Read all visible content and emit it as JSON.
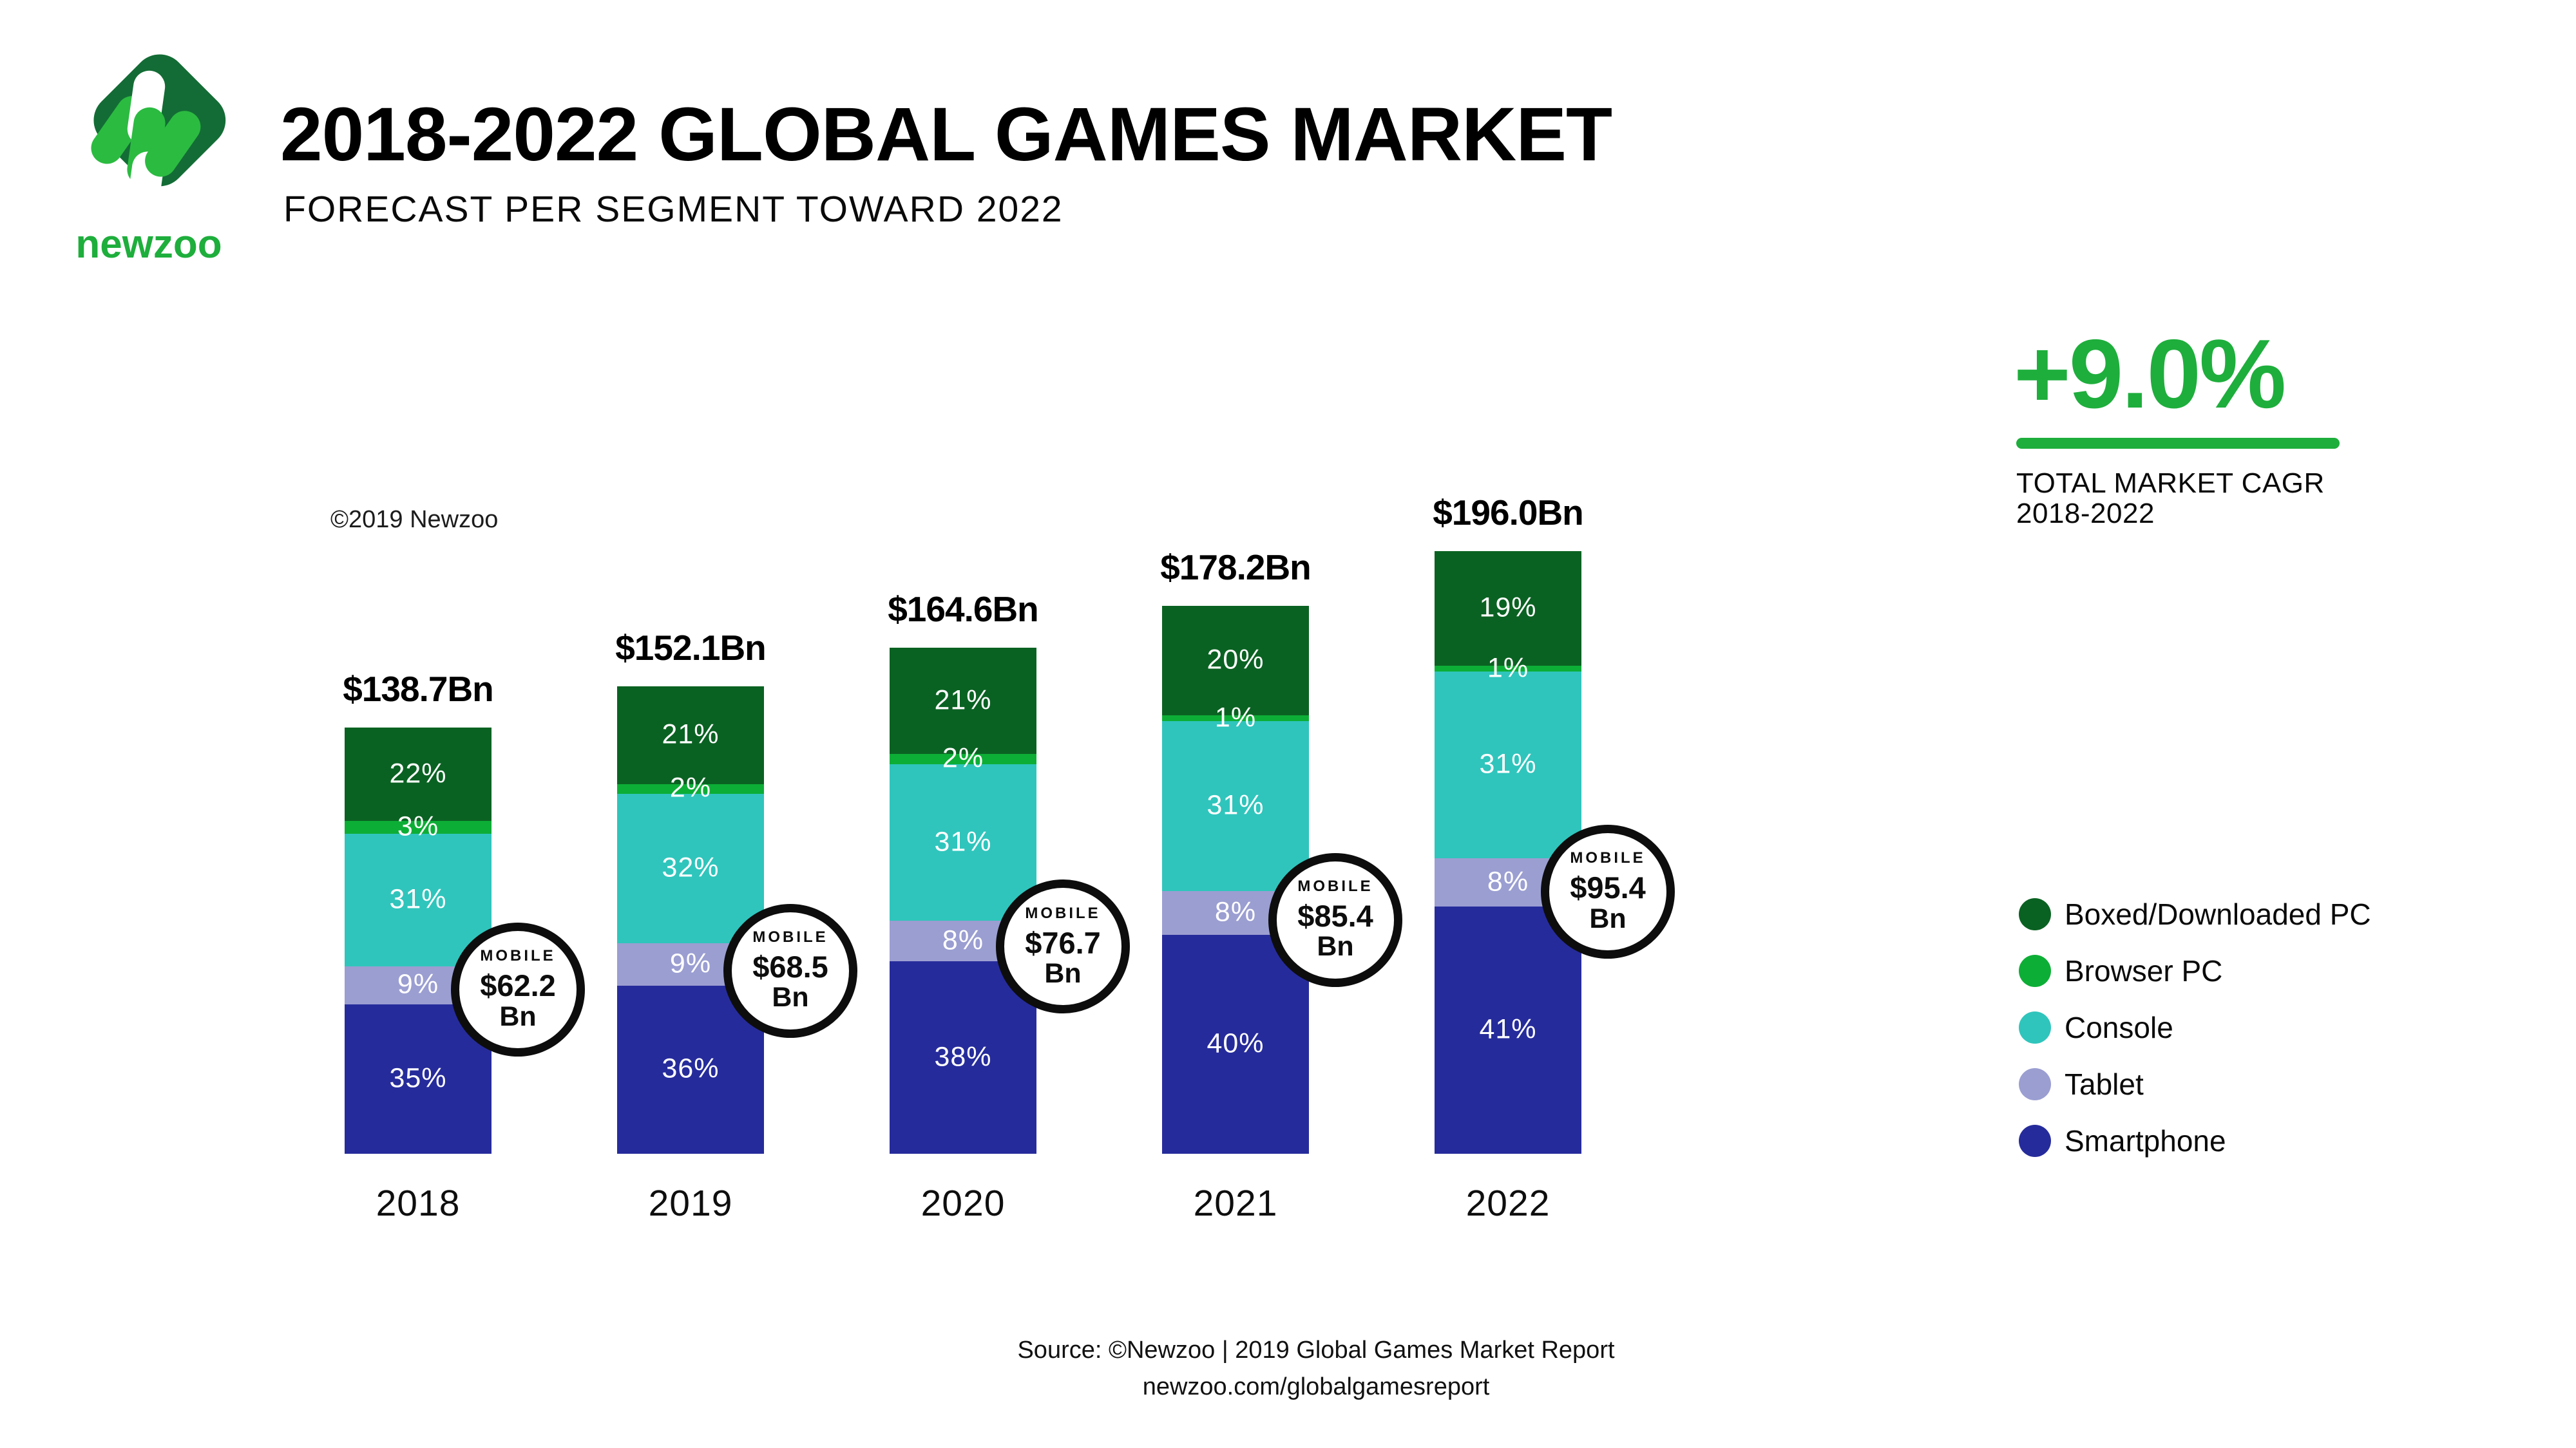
{
  "header": {
    "title": "2018-2022 GLOBAL GAMES MARKET",
    "subtitle": "FORECAST PER SEGMENT TOWARD 2022",
    "logo": {
      "wordmark": "newzoo",
      "diamond_color": "#136C35",
      "accent_color": "#2BBB41"
    }
  },
  "annotations": {
    "copyright": "©2019 Newzoo"
  },
  "cagr": {
    "value": "+9.0%",
    "line1": "TOTAL MARKET CAGR",
    "line2": "2018-2022",
    "color": "#1EAE3C"
  },
  "legend": {
    "items": [
      {
        "label": "Boxed/Downloaded PC",
        "color": "#0A6222"
      },
      {
        "label": "Browser PC",
        "color": "#0DAE36"
      },
      {
        "label": "Console",
        "color": "#2FC5BC"
      },
      {
        "label": "Tablet",
        "color": "#9B9ED1"
      },
      {
        "label": "Smartphone",
        "color": "#262B9B"
      }
    ]
  },
  "footer": {
    "line1": "Source: ©Newzoo | 2019 Global Games Market Report",
    "line2": "newzoo.com/globalgamesreport"
  },
  "chart_data": {
    "type": "bar",
    "stacked": true,
    "title": "2018-2022 Global Games Market, forecast per segment toward 2022",
    "unit": "USD billions",
    "categories": [
      "2018",
      "2019",
      "2020",
      "2021",
      "2022"
    ],
    "totals_bn": [
      138.7,
      152.1,
      164.6,
      178.2,
      196.0
    ],
    "total_labels": [
      "$138.7Bn",
      "$152.1Bn",
      "$164.6Bn",
      "$178.2Bn",
      "$196.0Bn"
    ],
    "series_order": "top-to-bottom",
    "series": [
      {
        "name": "Boxed/Downloaded PC",
        "color": "#0A6222",
        "pct": [
          22,
          21,
          21,
          20,
          19
        ]
      },
      {
        "name": "Browser PC",
        "color": "#0DAE36",
        "pct": [
          3,
          2,
          2,
          1,
          1
        ]
      },
      {
        "name": "Console",
        "color": "#2FC5BC",
        "pct": [
          31,
          32,
          31,
          31,
          31
        ]
      },
      {
        "name": "Tablet",
        "color": "#9B9ED1",
        "pct": [
          9,
          9,
          8,
          8,
          8
        ]
      },
      {
        "name": "Smartphone",
        "color": "#262B9B",
        "pct": [
          35,
          36,
          38,
          40,
          41
        ]
      }
    ],
    "mobile_callouts": {
      "label": "MOBILE",
      "unit": "Bn",
      "values": [
        "$62.2",
        "$68.5",
        "$76.7",
        "$85.4",
        "$95.4"
      ]
    },
    "value_label_format": "percent",
    "legend_position": "right",
    "grid": false,
    "ylabel": "",
    "xlabel": ""
  }
}
